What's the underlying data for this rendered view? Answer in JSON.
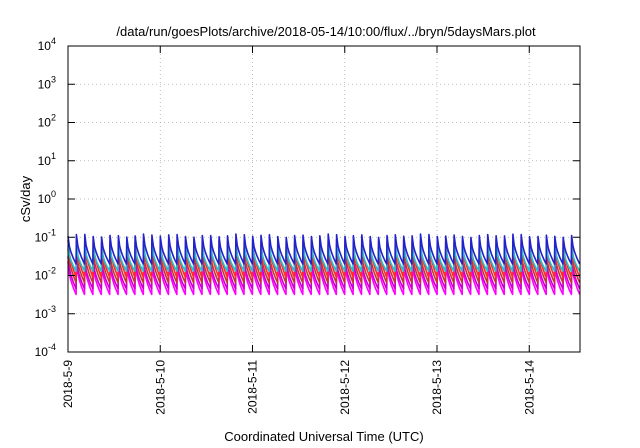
{
  "chart_data": {
    "type": "line",
    "title": "/data/run/goesPlots/archive/2018-05-14/10:00/flux/../bryn/5daysMars.plot",
    "xlabel": "Coordinated Universal Time (UTC)",
    "ylabel": "cSv/day",
    "x_ticks": [
      "2018-5-9",
      "2018-5-10",
      "2018-5-11",
      "2018-5-12",
      "2018-5-13",
      "2018-5-14"
    ],
    "y_scale": "log",
    "ylim": [
      0.0001,
      10000
    ],
    "y_ticks": [
      {
        "base": "10",
        "exp": "-4"
      },
      {
        "base": "10",
        "exp": "-3"
      },
      {
        "base": "10",
        "exp": "-2"
      },
      {
        "base": "10",
        "exp": "-1"
      },
      {
        "base": "10",
        "exp": "0"
      },
      {
        "base": "10",
        "exp": "1"
      },
      {
        "base": "10",
        "exp": "2"
      },
      {
        "base": "10",
        "exp": "3"
      },
      {
        "base": "10",
        "exp": "4"
      }
    ],
    "xlim_days": [
      0,
      5.55
    ],
    "grid": true,
    "sawtooth_cycles": 61,
    "series": [
      {
        "color": "#ff00ff",
        "peak": 0.022,
        "trough": 0.0032
      },
      {
        "color": "#cc00cc",
        "peak": 0.028,
        "trough": 0.0045
      },
      {
        "color": "#c0392b",
        "peak": 0.045,
        "trough": 0.0065
      },
      {
        "color": "#ff2a2a",
        "peak": 0.08,
        "trough": 0.009
      },
      {
        "color": "#20c0d0",
        "peak": 0.06,
        "trough": 0.013
      },
      {
        "color": "#2222cc",
        "peak": 0.11,
        "trough": 0.02
      }
    ]
  }
}
